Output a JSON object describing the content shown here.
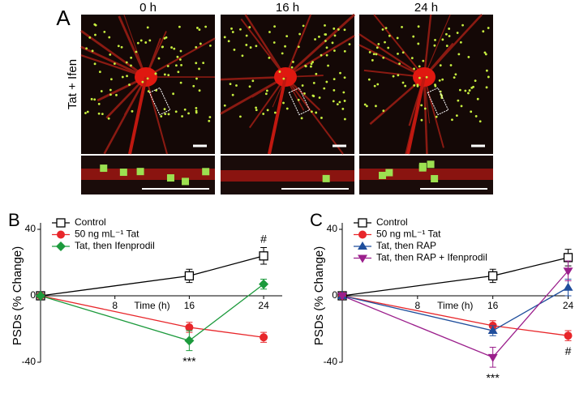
{
  "panel_a": {
    "label": "A",
    "row_label": "Tat + Ifen",
    "columns": [
      "0 h",
      "16 h",
      "24 h"
    ]
  },
  "chart_data": [
    {
      "type": "line",
      "label": "B",
      "ylabel": "PSDs (% Change)",
      "xlabel": "Time (h)",
      "xlim": [
        0,
        26
      ],
      "ylim": [
        -40,
        40
      ],
      "xticks": [
        8,
        16,
        24
      ],
      "yticks": [
        -40,
        0,
        40
      ],
      "legend": "upper left",
      "x": [
        0,
        16,
        24
      ],
      "series": [
        {
          "name": "Control",
          "color": "#000000",
          "marker": "square-open",
          "values": [
            0,
            12,
            24
          ],
          "errors": [
            0,
            4,
            5
          ]
        },
        {
          "name": "50 ng mL⁻¹ Tat",
          "color": "#e8262a",
          "marker": "circle",
          "values": [
            0,
            -19,
            -25
          ],
          "errors": [
            0,
            3,
            3
          ]
        },
        {
          "name": "Tat, then Ifenprodil",
          "color": "#1c9a3c",
          "marker": "diamond",
          "values": [
            0,
            -27,
            7
          ],
          "errors": [
            0,
            6,
            3
          ]
        }
      ],
      "annotations": [
        {
          "text": "***",
          "x": 16,
          "side": "below"
        },
        {
          "text": "#",
          "x": 24,
          "side": "above"
        }
      ]
    },
    {
      "type": "line",
      "label": "C",
      "ylabel": "PSDs (% Change)",
      "xlabel": "Time (h)",
      "xlim": [
        0,
        24.3
      ],
      "ylim": [
        -40,
        40
      ],
      "xticks": [
        8,
        16,
        24
      ],
      "yticks": [
        -40,
        0,
        40
      ],
      "legend": "upper left",
      "x": [
        0,
        16,
        24
      ],
      "series": [
        {
          "name": "Control",
          "color": "#000000",
          "marker": "square-open",
          "values": [
            0,
            12,
            23
          ],
          "errors": [
            0,
            4,
            5
          ]
        },
        {
          "name": "50 ng mL⁻¹ Tat",
          "color": "#e8262a",
          "marker": "circle",
          "values": [
            0,
            -18,
            -24
          ],
          "errors": [
            0,
            3,
            3
          ]
        },
        {
          "name": "Tat, then RAP",
          "color": "#1f4e9c",
          "marker": "triangle-up",
          "values": [
            0,
            -21,
            5
          ],
          "errors": [
            0,
            3,
            5
          ]
        },
        {
          "name": "Tat, then RAP + Ifenprodil",
          "color": "#9b1f8c",
          "marker": "triangle-down",
          "values": [
            0,
            -37,
            15
          ],
          "errors": [
            0,
            6,
            6
          ]
        }
      ],
      "annotations": [
        {
          "text": "***",
          "x": 16,
          "side": "below"
        },
        {
          "text": "#",
          "x": 24,
          "side": "below"
        }
      ]
    }
  ]
}
